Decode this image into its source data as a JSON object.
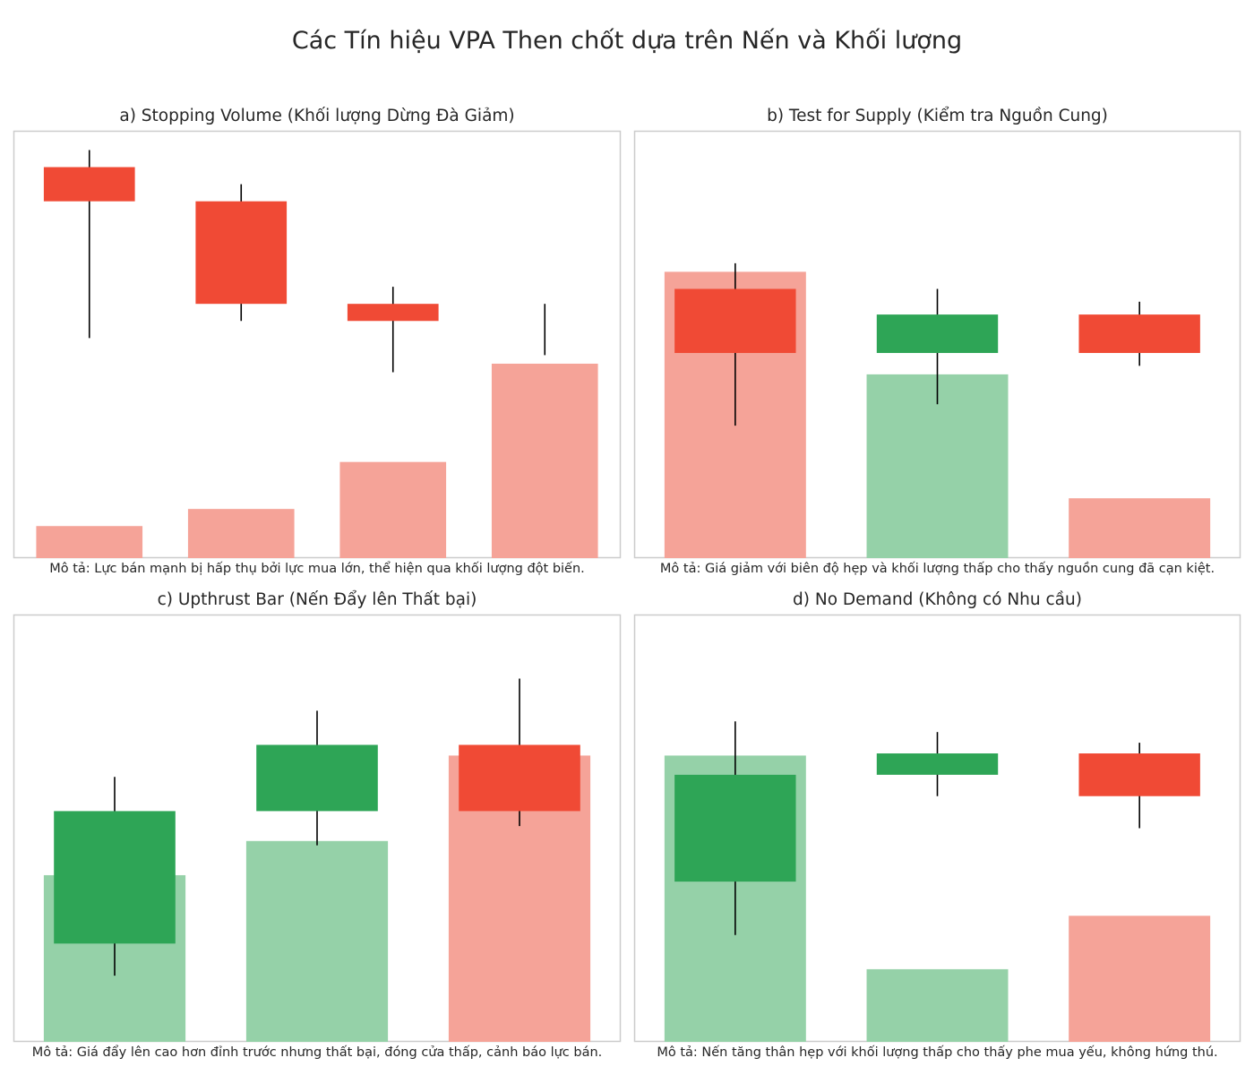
{
  "title": "Các Tín hiệu VPA Then chốt dựa trên Nến và Khối lượng",
  "colors": {
    "bear_candle": "#f04a35",
    "bull_candle": "#2ea556",
    "bear_volume": "#f5a398",
    "bull_volume": "#95d1a8",
    "wick": "#000000",
    "frame": "#cccccc"
  },
  "chart_data": [
    {
      "type": "candlestick-volume",
      "title": "a) Stopping Volume (Khối lượng Dừng Đà Giảm)",
      "description": "Mô tả: Lực bán mạnh bị hấp thụ bởi lực mua lớn, thể hiện qua khối lượng đột biến.",
      "candles": [
        {
          "open": 91.5,
          "close": 83.5,
          "high": 95.5,
          "low": 51.5,
          "direction": "down"
        },
        {
          "open": 83.5,
          "close": 59.5,
          "high": 87.5,
          "low": 55.5,
          "direction": "down"
        },
        {
          "open": 59.5,
          "close": 55.5,
          "high": 63.5,
          "low": 43.5,
          "direction": "down"
        },
        {
          "open": 55.5,
          "close": 55.5,
          "high": 59.5,
          "low": 47.5,
          "direction": "down"
        }
      ],
      "volumes": [
        7.5,
        11.5,
        22.5,
        45.5
      ],
      "volume_direction": [
        "down",
        "down",
        "down",
        "down"
      ],
      "ylim": [
        0,
        100
      ],
      "xticks": false,
      "yticks": false
    },
    {
      "type": "candlestick-volume",
      "title": "b) Test for Supply (Kiểm tra Nguồn Cung)",
      "description": "Mô tả: Giá giảm với biên độ hẹp và khối lượng thấp cho thấy nguồn cung đã cạn kiệt.",
      "candles": [
        {
          "open": 63,
          "close": 48,
          "high": 69,
          "low": 31,
          "direction": "down"
        },
        {
          "open": 48,
          "close": 57,
          "high": 63,
          "low": 36,
          "direction": "up"
        },
        {
          "open": 57,
          "close": 48,
          "high": 60,
          "low": 45,
          "direction": "down"
        }
      ],
      "volumes": [
        67,
        43,
        14
      ],
      "volume_direction": [
        "down",
        "up",
        "down"
      ],
      "ylim": [
        0,
        100
      ],
      "xticks": false,
      "yticks": false
    },
    {
      "type": "candlestick-volume",
      "title": "c) Upthrust Bar (Nến Đẩy lên Thất bại)",
      "description": "Mô tả: Giá đẩy lên cao hơn đỉnh trước nhưng thất bại, đóng cửa thấp, cảnh báo lực bán.",
      "candles": [
        {
          "open": 23,
          "close": 54,
          "high": 62,
          "low": 15.5,
          "direction": "up"
        },
        {
          "open": 54,
          "close": 69.5,
          "high": 77.5,
          "low": 46,
          "direction": "up"
        },
        {
          "open": 69.5,
          "close": 54,
          "high": 85,
          "low": 50.5,
          "direction": "down"
        }
      ],
      "volumes": [
        39,
        47,
        67
      ],
      "volume_direction": [
        "up",
        "up",
        "down"
      ],
      "ylim": [
        0,
        100
      ],
      "xticks": false,
      "yticks": false
    },
    {
      "type": "candlestick-volume",
      "title": "d) No Demand (Không có Nhu cầu)",
      "description": "Mô tả: Nến tăng thân hẹp với khối lượng thấp cho thấy phe mua yếu, không hứng thú.",
      "candles": [
        {
          "open": 37.5,
          "close": 62.5,
          "high": 75,
          "low": 25,
          "direction": "up"
        },
        {
          "open": 62.5,
          "close": 67.5,
          "high": 72.5,
          "low": 57.5,
          "direction": "up"
        },
        {
          "open": 67.5,
          "close": 57.5,
          "high": 70,
          "low": 50,
          "direction": "down"
        }
      ],
      "volumes": [
        67,
        17,
        29.5
      ],
      "volume_direction": [
        "up",
        "up",
        "down"
      ],
      "ylim": [
        0,
        100
      ],
      "xticks": false,
      "yticks": false
    }
  ]
}
